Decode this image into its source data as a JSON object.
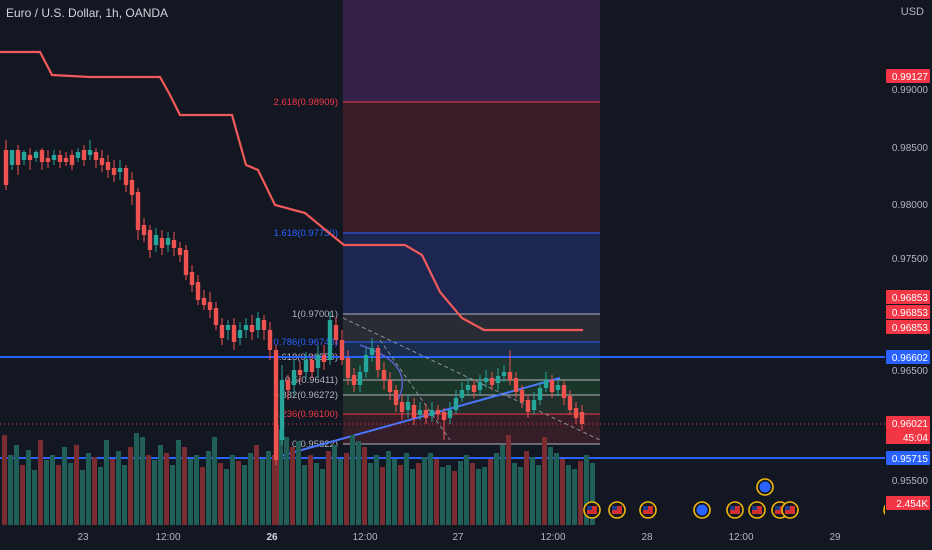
{
  "header": {
    "symbol": "Euro / U.S. Dollar, 1h, OANDA",
    "currency": "USD"
  },
  "price_axis": {
    "ticks": [
      "0.99000",
      "0.98500",
      "0.98000",
      "0.97500",
      "0.96500",
      "0.95500"
    ],
    "labels": [
      {
        "text": "0.99127",
        "color": "#f23645"
      },
      {
        "text": "0.96853",
        "color": "#f23645"
      },
      {
        "text": "0.96853",
        "color": "#f23645"
      },
      {
        "text": "0.96853",
        "color": "#f23645"
      },
      {
        "text": "0.96602",
        "color": "#2962ff"
      },
      {
        "text": "0.96021",
        "color": "#f23645"
      },
      {
        "text": "45:04",
        "color": "#f23645"
      },
      {
        "text": "0.95715",
        "color": "#2962ff"
      },
      {
        "text": "2.454K",
        "color": "#f23645"
      }
    ]
  },
  "time_axis": [
    "23",
    "12:00",
    "26",
    "12:00",
    "27",
    "12:00",
    "28",
    "12:00",
    "29"
  ],
  "fib_levels": [
    {
      "label": "2.618(0.98909)",
      "color": "#f23645"
    },
    {
      "label": "1.618(0.97730)",
      "color": "#2962ff"
    },
    {
      "label": "1(0.97001)",
      "color": "#b2b5be"
    },
    {
      "label": "0.786(0.96748)",
      "color": "#2962ff"
    },
    {
      "label": "0.618(0.96550)",
      "color": "#b2b5be"
    },
    {
      "label": "0.5(0.96411)",
      "color": "#b2b5be"
    },
    {
      "label": "0.382(0.96272)",
      "color": "#b2b5be"
    },
    {
      "label": "0.236(0.96100)",
      "color": "#f23645"
    },
    {
      "label": "0(0.95822)",
      "color": "#b2b5be"
    }
  ],
  "colors": {
    "up": "#26a69a",
    "down": "#ef5350",
    "resistance": "#2962ff",
    "indicator": "#f05a5a"
  },
  "events": {
    "icons": [
      "us-flag-icon",
      "eu-flag-icon"
    ]
  }
}
